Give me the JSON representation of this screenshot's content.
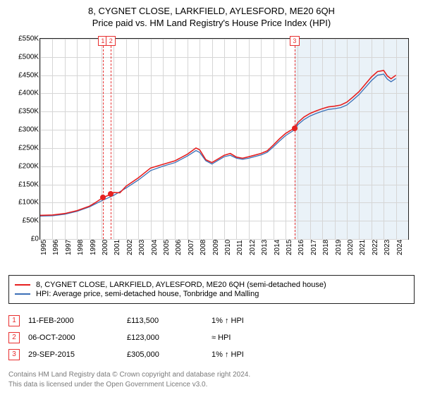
{
  "title": "8, CYGNET CLOSE, LARKFIELD, AYLESFORD, ME20 6QH",
  "subtitle": "Price paid vs. HM Land Registry's House Price Index (HPI)",
  "chart": {
    "type": "line",
    "x_range": [
      1995,
      2025
    ],
    "y_range": [
      0,
      550000
    ],
    "y_tick_step": 50000,
    "y_tick_format_prefix": "£",
    "y_tick_format_suffix": "K",
    "x_ticks": [
      1995,
      1996,
      1997,
      1998,
      1999,
      2000,
      2001,
      2002,
      2003,
      2004,
      2005,
      2006,
      2007,
      2008,
      2009,
      2010,
      2011,
      2012,
      2013,
      2014,
      2015,
      2016,
      2017,
      2018,
      2019,
      2020,
      2021,
      2022,
      2023,
      2024
    ],
    "background_color": "#ffffff",
    "grid_color": "#d6d6d6",
    "axis_color": "#222222",
    "forecast_shade": {
      "from_x": 2015.75,
      "color": "#d8e7f3",
      "opacity": 0.55
    },
    "series": [
      {
        "key": "property",
        "label": "8, CYGNET CLOSE, LARKFIELD, AYLESFORD, ME20 6QH (semi-detached house)",
        "color": "#e62020",
        "line_width": 1.6,
        "points": [
          [
            1995,
            65000
          ],
          [
            1996,
            66000
          ],
          [
            1997,
            70000
          ],
          [
            1998,
            78000
          ],
          [
            1999,
            90000
          ],
          [
            1999.5,
            100000
          ],
          [
            2000.11,
            113500
          ],
          [
            2000.76,
            123000
          ],
          [
            2001,
            128000
          ],
          [
            2001.5,
            127000
          ],
          [
            2002,
            145000
          ],
          [
            2003,
            168000
          ],
          [
            2004,
            195000
          ],
          [
            2005,
            205000
          ],
          [
            2006,
            215000
          ],
          [
            2007,
            233000
          ],
          [
            2007.7,
            250000
          ],
          [
            2008,
            245000
          ],
          [
            2008.5,
            218000
          ],
          [
            2009,
            210000
          ],
          [
            2009.5,
            220000
          ],
          [
            2010,
            230000
          ],
          [
            2010.5,
            235000
          ],
          [
            2011,
            225000
          ],
          [
            2011.5,
            222000
          ],
          [
            2012,
            226000
          ],
          [
            2013,
            235000
          ],
          [
            2013.5,
            242000
          ],
          [
            2014,
            258000
          ],
          [
            2014.5,
            275000
          ],
          [
            2015,
            290000
          ],
          [
            2015.74,
            305000
          ],
          [
            2016,
            320000
          ],
          [
            2016.5,
            335000
          ],
          [
            2017,
            345000
          ],
          [
            2017.5,
            352000
          ],
          [
            2018,
            358000
          ],
          [
            2018.5,
            363000
          ],
          [
            2019,
            365000
          ],
          [
            2019.5,
            368000
          ],
          [
            2020,
            376000
          ],
          [
            2020.5,
            390000
          ],
          [
            2021,
            405000
          ],
          [
            2021.5,
            425000
          ],
          [
            2022,
            445000
          ],
          [
            2022.5,
            460000
          ],
          [
            2023,
            463000
          ],
          [
            2023.3,
            448000
          ],
          [
            2023.6,
            440000
          ],
          [
            2024,
            450000
          ]
        ]
      },
      {
        "key": "hpi",
        "label": "HPI: Average price, semi-detached house, Tonbridge and Malling",
        "color": "#3b6fb6",
        "line_width": 1.3,
        "points": [
          [
            1995,
            63000
          ],
          [
            1996,
            64000
          ],
          [
            1997,
            68000
          ],
          [
            1998,
            76000
          ],
          [
            1999,
            88000
          ],
          [
            2000,
            105000
          ],
          [
            2001,
            120000
          ],
          [
            2002,
            140000
          ],
          [
            2003,
            162000
          ],
          [
            2004,
            188000
          ],
          [
            2005,
            200000
          ],
          [
            2006,
            210000
          ],
          [
            2007,
            228000
          ],
          [
            2007.7,
            243000
          ],
          [
            2008,
            238000
          ],
          [
            2008.5,
            215000
          ],
          [
            2009,
            206000
          ],
          [
            2009.5,
            216000
          ],
          [
            2010,
            226000
          ],
          [
            2010.5,
            230000
          ],
          [
            2011,
            222000
          ],
          [
            2011.5,
            219000
          ],
          [
            2012,
            222000
          ],
          [
            2013,
            231000
          ],
          [
            2013.5,
            238000
          ],
          [
            2014,
            253000
          ],
          [
            2014.5,
            269000
          ],
          [
            2015,
            284000
          ],
          [
            2015.74,
            300000
          ],
          [
            2016,
            314000
          ],
          [
            2016.5,
            328000
          ],
          [
            2017,
            338000
          ],
          [
            2017.5,
            345000
          ],
          [
            2018,
            351000
          ],
          [
            2018.5,
            356000
          ],
          [
            2019,
            358000
          ],
          [
            2019.5,
            361000
          ],
          [
            2020,
            368000
          ],
          [
            2020.5,
            382000
          ],
          [
            2021,
            397000
          ],
          [
            2021.5,
            416000
          ],
          [
            2022,
            435000
          ],
          [
            2022.5,
            450000
          ],
          [
            2023,
            453000
          ],
          [
            2023.3,
            439000
          ],
          [
            2023.6,
            432000
          ],
          [
            2024,
            441000
          ]
        ]
      }
    ],
    "event_markers": [
      {
        "idx": "1",
        "x": 2000.11,
        "y": 113500
      },
      {
        "idx": "2",
        "x": 2000.76,
        "y": 123000
      },
      {
        "idx": "3",
        "x": 2015.74,
        "y": 305000
      }
    ]
  },
  "legend": [
    {
      "color": "#e62020",
      "text": "8, CYGNET CLOSE, LARKFIELD, AYLESFORD, ME20 6QH (semi-detached house)"
    },
    {
      "color": "#3b6fb6",
      "text": "HPI: Average price, semi-detached house, Tonbridge and Malling"
    }
  ],
  "sales": [
    {
      "idx": "1",
      "date": "11-FEB-2000",
      "price": "£113,500",
      "note": "1% ↑ HPI"
    },
    {
      "idx": "2",
      "date": "06-OCT-2000",
      "price": "£123,000",
      "note": "≈ HPI"
    },
    {
      "idx": "3",
      "date": "29-SEP-2015",
      "price": "£305,000",
      "note": "1% ↑ HPI"
    }
  ],
  "footer_line1": "Contains HM Land Registry data © Crown copyright and database right 2024.",
  "footer_line2": "This data is licensed under the Open Government Licence v3.0."
}
